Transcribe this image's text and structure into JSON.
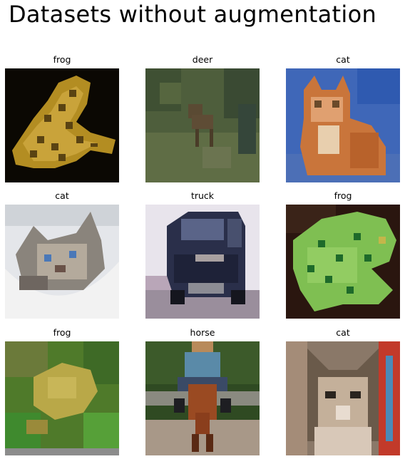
{
  "title": "Datasets without augmentation",
  "grid": [
    {
      "label": "frog",
      "scene": "frog-spotted-on-black"
    },
    {
      "label": "deer",
      "scene": "deer-in-green-field"
    },
    {
      "label": "cat",
      "scene": "orange-kitten-on-blue"
    },
    {
      "label": "cat",
      "scene": "grey-cat-in-bowl"
    },
    {
      "label": "truck",
      "scene": "dark-blue-truck"
    },
    {
      "label": "frog",
      "scene": "green-frog-on-brown"
    },
    {
      "label": "frog",
      "scene": "yellow-frog-in-leaves"
    },
    {
      "label": "horse",
      "scene": "rider-on-brown-horse"
    },
    {
      "label": "cat",
      "scene": "calico-cat-closeup"
    }
  ]
}
